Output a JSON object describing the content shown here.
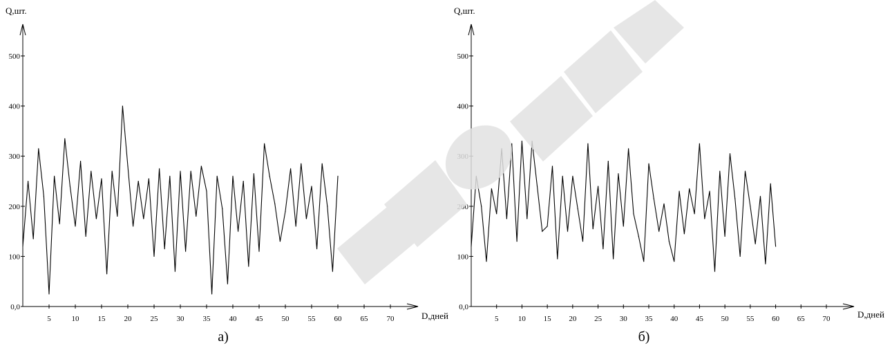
{
  "chart_data": [
    {
      "type": "line",
      "panel_label": "а)",
      "ylabel": "Q,шт.",
      "xlabel": "D,дней",
      "y_tick_labels": [
        "0,0",
        "100",
        "200",
        "300",
        "400",
        "500"
      ],
      "y_ticks": [
        0,
        100,
        200,
        300,
        400,
        500
      ],
      "x_ticks": [
        5,
        10,
        15,
        20,
        25,
        30,
        35,
        40,
        45,
        50,
        55,
        60,
        65,
        70
      ],
      "xlim": [
        0,
        77
      ],
      "ylim": [
        0,
        560
      ],
      "grid": false,
      "series": [
        {
          "color": "#000000",
          "x": [
            0,
            1,
            2,
            3,
            4,
            5,
            6,
            7,
            8,
            9,
            10,
            11,
            12,
            13,
            14,
            15,
            16,
            17,
            18,
            19,
            20,
            21,
            22,
            23,
            24,
            25,
            26,
            27,
            28,
            29,
            30,
            31,
            32,
            33,
            34,
            35,
            36,
            37,
            38,
            39,
            40,
            41,
            42,
            43,
            44,
            45,
            46,
            47,
            48,
            49,
            50,
            51,
            52,
            53,
            54,
            55,
            56,
            57,
            58,
            59,
            60
          ],
          "y": [
            120,
            250,
            135,
            315,
            220,
            25,
            260,
            165,
            335,
            240,
            160,
            290,
            140,
            270,
            175,
            255,
            65,
            270,
            180,
            400,
            280,
            160,
            250,
            175,
            255,
            100,
            275,
            115,
            260,
            70,
            270,
            110,
            270,
            180,
            280,
            230,
            25,
            260,
            195,
            45,
            260,
            150,
            250,
            80,
            265,
            110,
            325,
            260,
            205,
            130,
            190,
            275,
            160,
            285,
            175,
            240,
            115,
            285,
            200,
            70,
            260
          ]
        }
      ]
    },
    {
      "type": "line",
      "panel_label": "б)",
      "ylabel": "Q,шт.",
      "xlabel": "D,дней",
      "y_tick_labels": [
        "0,0",
        "100",
        "200",
        "300",
        "400",
        "500"
      ],
      "y_ticks": [
        0,
        100,
        200,
        300,
        400,
        500
      ],
      "x_ticks": [
        5,
        10,
        15,
        20,
        25,
        30,
        35,
        40,
        45,
        50,
        55,
        60,
        65,
        70
      ],
      "xlim": [
        0,
        77
      ],
      "ylim": [
        0,
        560
      ],
      "grid": false,
      "series": [
        {
          "color": "#000000",
          "x": [
            0,
            1,
            2,
            3,
            4,
            5,
            6,
            7,
            8,
            9,
            10,
            11,
            12,
            13,
            14,
            15,
            16,
            17,
            18,
            19,
            20,
            21,
            22,
            23,
            24,
            25,
            26,
            27,
            28,
            29,
            30,
            31,
            32,
            33,
            34,
            35,
            36,
            37,
            38,
            39,
            40,
            41,
            42,
            43,
            44,
            45,
            46,
            47,
            48,
            49,
            50,
            51,
            52,
            53,
            54,
            55,
            56,
            57,
            58,
            59,
            60
          ],
          "y": [
            120,
            260,
            200,
            90,
            235,
            185,
            315,
            175,
            325,
            130,
            330,
            175,
            330,
            240,
            150,
            160,
            280,
            95,
            260,
            150,
            260,
            195,
            130,
            325,
            155,
            240,
            115,
            290,
            95,
            265,
            160,
            315,
            185,
            140,
            90,
            285,
            215,
            150,
            205,
            130,
            90,
            230,
            145,
            235,
            185,
            325,
            175,
            230,
            70,
            270,
            140,
            305,
            215,
            100,
            270,
            200,
            125,
            220,
            85,
            245,
            120
          ]
        }
      ]
    }
  ]
}
